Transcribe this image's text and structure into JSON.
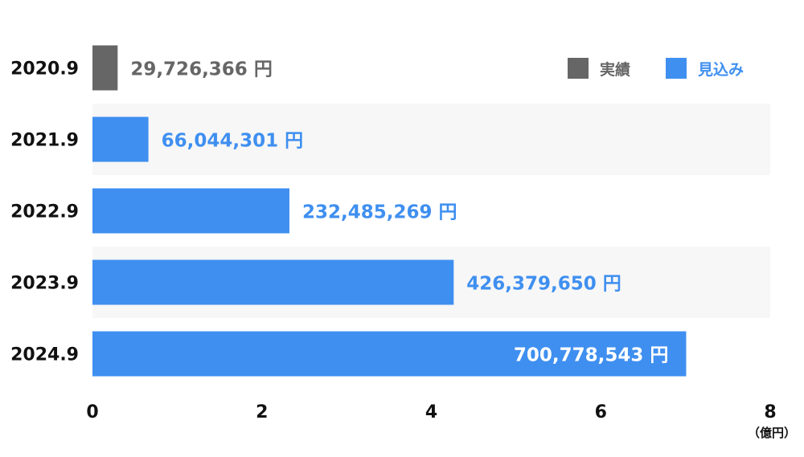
{
  "chart_data": {
    "type": "bar",
    "orientation": "horizontal",
    "categories": [
      "2020.9",
      "2021.9",
      "2022.9",
      "2023.9",
      "2024.9"
    ],
    "values": [
      0.29726366,
      0.66044301,
      2.32485269,
      4.2637965,
      7.00778543
    ],
    "value_labels": [
      "29,726,366 円",
      "66,044,301 円",
      "232,485,269 円",
      "426,379,650 円",
      "700,778,543 円"
    ],
    "value_kind": [
      "actual",
      "forecast",
      "forecast",
      "forecast",
      "forecast"
    ],
    "xlim": [
      0,
      8
    ],
    "x_ticks": [
      "0",
      "2",
      "4",
      "6",
      "8"
    ],
    "unit_label": "（億円）",
    "legend": [
      {
        "key": "actual",
        "label": "実績",
        "color": "#666666"
      },
      {
        "key": "forecast",
        "label": "見込み",
        "color": "#3f8ff0"
      }
    ],
    "legend_position": "top-right",
    "grid": false
  }
}
